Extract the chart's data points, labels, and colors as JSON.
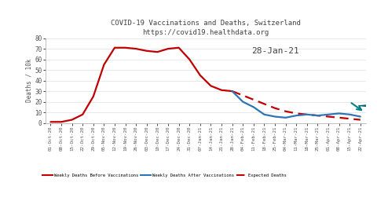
{
  "title": "COVID-19 Vaccinations and Deaths, Switzerland\nhttps://covid19.healthdata.org",
  "ylabel": "Deaths / 10k",
  "ylim": [
    0,
    80
  ],
  "yticks": [
    0,
    10,
    20,
    30,
    40,
    50,
    60,
    70,
    80
  ],
  "annotation": "28-Jan-21",
  "background_color": "#ffffff",
  "grid_color": "#e0e0e0",
  "dates_before": [
    "01-Oct-20",
    "08-Oct-20",
    "15-Oct-20",
    "22-Oct-20",
    "29-Oct-20",
    "05-Nov-20",
    "12-Nov-20",
    "19-Nov-20",
    "26-Nov-20",
    "03-Dec-20",
    "10-Dec-20",
    "17-Dec-20",
    "24-Dec-20",
    "31-Dec-20",
    "07-Jan-21",
    "14-Jan-21",
    "21-Jan-21",
    "28-Jan-21"
  ],
  "values_before": [
    1,
    1,
    3,
    8,
    25,
    55,
    71,
    71,
    70,
    68,
    67,
    70,
    71,
    60,
    45,
    35,
    31,
    30
  ],
  "dates_after": [
    "28-Jan-21",
    "04-Feb-21",
    "11-Feb-21",
    "18-Feb-21",
    "25-Feb-21",
    "04-Mar-21",
    "11-Mar-21",
    "18-Mar-21",
    "25-Mar-21",
    "01-Apr-21",
    "08-Apr-21",
    "15-Apr-21",
    "22-Apr-21"
  ],
  "values_after": [
    30,
    20,
    15,
    8,
    6,
    5,
    7,
    8,
    7,
    8,
    9,
    8,
    6
  ],
  "dates_expected": [
    "28-Jan-21",
    "04-Feb-21",
    "11-Feb-21",
    "18-Feb-21",
    "25-Feb-21",
    "04-Mar-21",
    "11-Mar-21",
    "18-Mar-21",
    "25-Mar-21",
    "01-Apr-21",
    "08-Apr-21",
    "15-Apr-21",
    "22-Apr-21"
  ],
  "values_expected": [
    30,
    26,
    22,
    18,
    14,
    11,
    9,
    8,
    7,
    6,
    5,
    4,
    3
  ],
  "color_before": "#c00000",
  "color_after": "#2e75b6",
  "color_expected": "#c00000",
  "legend_labels": [
    "Weekly Deaths Before Vaccinations",
    "Weekly Deaths After Vaccinations",
    "Expected Deaths"
  ],
  "xtick_labels": [
    "01-Oct-20",
    "08-Oct-20",
    "15-Oct-20",
    "22-Oct-20",
    "29-Oct-20",
    "05-Nov-20",
    "12-Nov-20",
    "19-Nov-20",
    "26-Nov-20",
    "03-Dec-20",
    "10-Dec-20",
    "17-Dec-20",
    "24-Dec-20",
    "31-Dec-20",
    "07-Jan-21",
    "14-Jan-21",
    "21-Jan-21",
    "28-Jan-21",
    "04-Feb-21",
    "11-Feb-21",
    "18-Feb-21",
    "25-Feb-21",
    "04-Mar-21",
    "11-Mar-21",
    "18-Mar-21",
    "25-Mar-21",
    "01-Apr-21",
    "08-Apr-21",
    "15-Apr-21",
    "22-Apr-21"
  ]
}
